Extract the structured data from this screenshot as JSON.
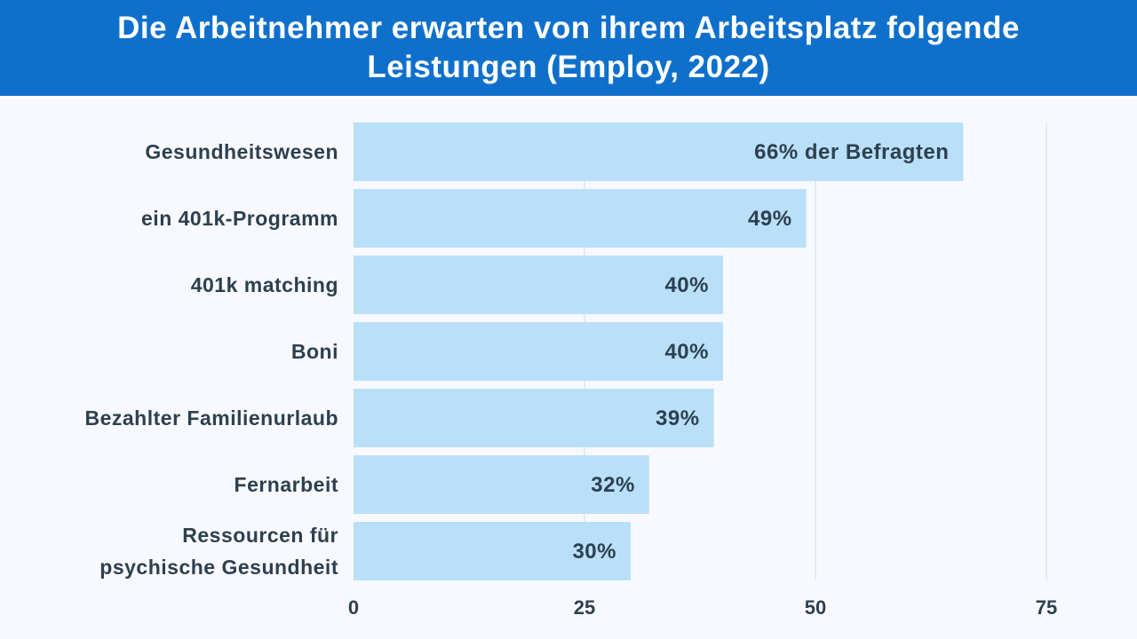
{
  "header": {
    "title": "Die Arbeitnehmer erwarten von ihrem Arbeitsplatz folgende Leistungen (Employ, 2022)"
  },
  "chart_data": {
    "type": "bar",
    "orientation": "horizontal",
    "title": "Die Arbeitnehmer erwarten von ihrem Arbeitsplatz folgende Leistungen (Employ, 2022)",
    "categories": [
      [
        "Gesundheitswesen"
      ],
      [
        "ein 401k-Programm"
      ],
      [
        "401k matching"
      ],
      [
        "Boni"
      ],
      [
        "Bezahlter Familienurlaub"
      ],
      [
        "Fernarbeit"
      ],
      [
        "Ressourcen für",
        "psychische Gesundheit"
      ]
    ],
    "values": [
      66,
      49,
      40,
      40,
      39,
      32,
      30
    ],
    "data_labels": [
      "66% der Befragten",
      "49%",
      "40%",
      "40%",
      "39%",
      "32%",
      "30%"
    ],
    "xlim": [
      0,
      75
    ],
    "xticks": [
      "0",
      "25",
      "50",
      "75"
    ],
    "grid": true,
    "colors": {
      "bar": "#b9e0f8",
      "text": "#2d4050",
      "header": "#0f70cc",
      "grid": "#dde6ef"
    }
  }
}
